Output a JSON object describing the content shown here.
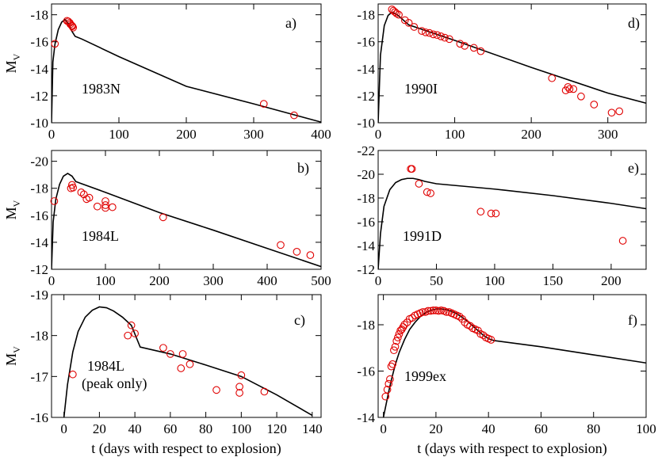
{
  "chart_data": [
    {
      "id": "a",
      "type": "scatter",
      "panel_label": "a)",
      "name": "1983N",
      "xlabel": "",
      "ylabel": "M_V",
      "xlim": [
        0,
        400
      ],
      "ylim": [
        -10,
        -18.8
      ],
      "xticks": [
        0,
        100,
        200,
        300,
        400
      ],
      "yticks": [
        -10,
        -12,
        -14,
        -16,
        -18
      ],
      "model_curve": {
        "x": [
          0,
          2,
          5,
          10,
          15,
          20,
          25,
          30,
          35,
          45,
          100,
          200,
          300,
          400
        ],
        "y": [
          -10,
          -14.5,
          -15.8,
          -16.9,
          -17.45,
          -17.65,
          -17.35,
          -16.8,
          -16.4,
          -16.2,
          -14.9,
          -12.7,
          -11.4,
          -10.05
        ]
      },
      "observations": {
        "x": [
          5,
          23,
          25,
          27,
          28,
          30,
          31,
          32,
          315,
          360
        ],
        "y": [
          -15.85,
          -17.55,
          -17.5,
          -17.4,
          -17.3,
          -17.2,
          -17.15,
          -17.05,
          -11.4,
          -10.55
        ]
      }
    },
    {
      "id": "b",
      "type": "scatter",
      "panel_label": "b)",
      "name": "1984L",
      "xlabel": "",
      "ylabel": "M_V",
      "xlim": [
        0,
        500
      ],
      "ylim": [
        -12,
        -20.8
      ],
      "xticks": [
        0,
        100,
        200,
        300,
        400,
        500
      ],
      "yticks": [
        -12,
        -14,
        -16,
        -18,
        -20
      ],
      "model_curve": {
        "x": [
          0,
          3,
          8,
          15,
          22,
          30,
          38,
          45,
          55,
          100,
          200,
          300,
          400,
          500
        ],
        "y": [
          -12,
          -15.5,
          -17.2,
          -18.3,
          -18.9,
          -19.1,
          -18.9,
          -18.5,
          -18.35,
          -17.7,
          -16.2,
          -14.9,
          -13.55,
          -12.2
        ]
      },
      "observations": {
        "x": [
          5,
          36,
          38,
          40,
          55,
          60,
          65,
          70,
          85,
          100,
          100,
          100,
          113,
          207,
          425,
          455,
          480
        ],
        "y": [
          -17.05,
          -18.0,
          -18.25,
          -18.05,
          -17.7,
          -17.55,
          -17.2,
          -17.3,
          -16.65,
          -16.75,
          -16.55,
          -17.05,
          -16.6,
          -15.85,
          -13.8,
          -13.3,
          -13.05
        ]
      }
    },
    {
      "id": "c",
      "type": "scatter",
      "panel_label": "c)",
      "name": "1984L",
      "note": "(peak only)",
      "xlabel": "t (days with respect to explosion)",
      "ylabel": "M_V",
      "xlim": [
        -7,
        145
      ],
      "ylim": [
        -16,
        -19
      ],
      "xticks": [
        0,
        20,
        40,
        60,
        80,
        100,
        120,
        140
      ],
      "yticks": [
        -16,
        -17,
        -18,
        -19
      ],
      "model_curve": {
        "x": [
          0,
          2,
          5,
          8,
          12,
          16,
          20,
          24,
          28,
          33,
          38,
          43,
          60,
          80,
          100,
          120,
          140
        ],
        "y": [
          -16,
          -16.8,
          -17.6,
          -18.1,
          -18.45,
          -18.62,
          -18.7,
          -18.68,
          -18.6,
          -18.45,
          -18.25,
          -17.72,
          -17.55,
          -17.28,
          -17.0,
          -16.55,
          -16.05
        ]
      },
      "observations": {
        "x": [
          5,
          36,
          38,
          40,
          56,
          60,
          66,
          67,
          71,
          86,
          99,
          99,
          100,
          113
        ],
        "y": [
          -17.05,
          -18.0,
          -18.25,
          -18.05,
          -17.7,
          -17.55,
          -17.2,
          -17.55,
          -17.3,
          -16.67,
          -16.75,
          -16.6,
          -17.03,
          -16.63
        ]
      }
    },
    {
      "id": "d",
      "type": "scatter",
      "panel_label": "d)",
      "name": "1990I",
      "xlabel": "",
      "ylabel": "",
      "xlim": [
        0,
        350
      ],
      "ylim": [
        -10,
        -18.8
      ],
      "xticks": [
        0,
        100,
        200,
        300
      ],
      "yticks": [
        -10,
        -12,
        -14,
        -16,
        -18
      ],
      "model_curve": {
        "x": [
          0,
          3,
          8,
          13,
          18,
          25,
          40,
          100,
          200,
          300,
          350
        ],
        "y": [
          -10,
          -15,
          -17.2,
          -17.95,
          -18.2,
          -18.0,
          -17.25,
          -16.1,
          -14.1,
          -12.2,
          -11.45
        ]
      },
      "observations": {
        "x": [
          18,
          20,
          22,
          24,
          27,
          35,
          40,
          47,
          57,
          62,
          67,
          72,
          77,
          82,
          87,
          93,
          107,
          113,
          125,
          134,
          227,
          245,
          248,
          250,
          255,
          265,
          282,
          305,
          315
        ],
        "y": [
          -18.4,
          -18.3,
          -18.2,
          -18.1,
          -18.0,
          -17.6,
          -17.4,
          -17.1,
          -16.8,
          -16.7,
          -16.65,
          -16.55,
          -16.5,
          -16.4,
          -16.3,
          -16.2,
          -15.85,
          -15.7,
          -15.55,
          -15.3,
          -13.3,
          -12.4,
          -12.65,
          -12.5,
          -12.5,
          -11.95,
          -11.35,
          -10.75,
          -10.85
        ]
      }
    },
    {
      "id": "e",
      "type": "scatter",
      "panel_label": "e)",
      "name": "1991D",
      "xlabel": "",
      "ylabel": "",
      "xlim": [
        0,
        230
      ],
      "ylim": [
        -12,
        -22
      ],
      "xticks": [
        0,
        50,
        100,
        150,
        200
      ],
      "yticks": [
        -12,
        -14,
        -16,
        -18,
        -20,
        -22
      ],
      "model_curve": {
        "x": [
          0,
          2,
          5,
          10,
          15,
          20,
          25,
          30,
          35,
          40,
          50,
          100,
          150,
          200,
          230
        ],
        "y": [
          -12,
          -15,
          -17.3,
          -18.7,
          -19.3,
          -19.55,
          -19.65,
          -19.65,
          -19.55,
          -19.4,
          -19.2,
          -18.75,
          -18.2,
          -17.55,
          -17.1
        ]
      },
      "observations": {
        "x": [
          28,
          29,
          35,
          42,
          45,
          88,
          97,
          101,
          210
        ],
        "y": [
          -20.45,
          -20.45,
          -19.2,
          -18.5,
          -18.4,
          -16.85,
          -16.7,
          -16.7,
          -14.4
        ]
      }
    },
    {
      "id": "f",
      "type": "scatter",
      "panel_label": "f)",
      "name": "1999ex",
      "xlabel": "t (days with respect to explosion)",
      "ylabel": "",
      "xlim": [
        -2,
        100
      ],
      "ylim": [
        -14,
        -19.3
      ],
      "xticks": [
        0,
        20,
        40,
        60,
        80,
        100
      ],
      "yticks": [
        -14,
        -16,
        -18
      ],
      "model_curve": {
        "x": [
          0,
          1,
          2,
          3,
          4,
          5,
          6,
          8,
          10,
          12,
          14,
          16,
          18,
          20,
          22,
          24,
          26,
          28,
          30,
          32,
          34,
          36,
          38,
          40,
          42,
          60,
          80,
          100
        ],
        "y": [
          -14,
          -14.55,
          -15.1,
          -15.6,
          -16.05,
          -16.45,
          -16.8,
          -17.35,
          -17.8,
          -18.1,
          -18.35,
          -18.52,
          -18.62,
          -18.68,
          -18.68,
          -18.65,
          -18.58,
          -18.47,
          -18.32,
          -18.15,
          -17.95,
          -17.75,
          -17.55,
          -17.4,
          -17.32,
          -17.05,
          -16.7,
          -16.35
        ]
      },
      "observations": {
        "x": [
          0.8,
          1.5,
          2,
          2.5,
          3,
          3.5,
          4,
          4.5,
          5,
          5.5,
          6,
          6.5,
          7,
          7.5,
          8,
          9,
          10,
          11,
          12,
          13,
          14,
          15,
          16,
          17,
          18,
          19,
          20,
          21,
          22,
          23,
          24,
          25,
          26,
          27,
          28,
          29,
          30,
          31,
          32,
          33,
          34,
          35,
          36,
          37,
          38,
          39,
          40,
          41
        ],
        "y": [
          -14.9,
          -15.2,
          -15.45,
          -15.65,
          -16.2,
          -16.3,
          -16.9,
          -17.05,
          -17.3,
          -17.45,
          -17.6,
          -17.75,
          -17.8,
          -17.9,
          -18.0,
          -18.1,
          -18.25,
          -18.3,
          -18.4,
          -18.45,
          -18.5,
          -18.55,
          -18.55,
          -18.6,
          -18.6,
          -18.62,
          -18.62,
          -18.6,
          -18.62,
          -18.6,
          -18.55,
          -18.55,
          -18.5,
          -18.45,
          -18.4,
          -18.35,
          -18.25,
          -18.1,
          -18.0,
          -17.95,
          -17.85,
          -17.8,
          -17.75,
          -17.6,
          -17.55,
          -17.45,
          -17.4,
          -17.35
        ]
      }
    }
  ]
}
